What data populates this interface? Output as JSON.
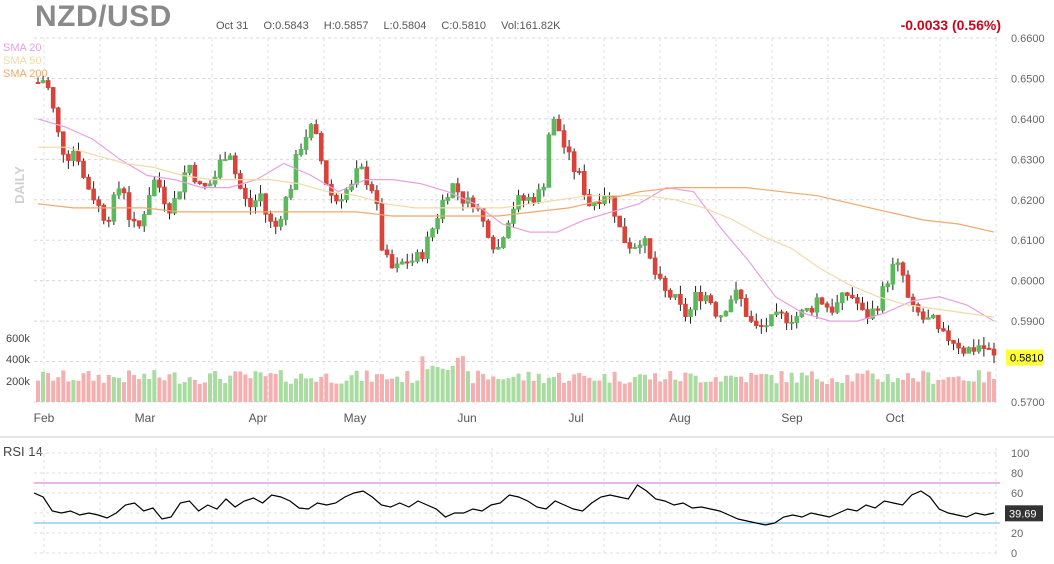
{
  "header": {
    "symbol": "NZD/USD",
    "date": "Oct 31",
    "open": "O:0.5843",
    "high": "H:0.5857",
    "low": "L:0.5804",
    "close": "C:0.5810",
    "volume": "Vol:161.82K",
    "change": "-0.0033 (0.56%)"
  },
  "legend": [
    {
      "label": "SMA 20",
      "color": "#e8a0e0"
    },
    {
      "label": "SMA 50",
      "color": "#f3d9a8"
    },
    {
      "label": "SMA 200",
      "color": "#f0a86a"
    }
  ],
  "panel_label": "DAILY",
  "colors": {
    "up": "#5cb85c",
    "down": "#d9433a",
    "vol_up": "#a8dca0",
    "vol_down": "#f4b0b0",
    "rsi_line": "#000000",
    "rsi_upper": "#d86ad8",
    "rsi_lower": "#5ab4e0"
  },
  "chart_data": [
    {
      "type": "candlestick",
      "title": "NZD/USD",
      "y_range": [
        0.57,
        0.66
      ],
      "y_ticks": [
        "0.6600",
        "0.6500",
        "0.6400",
        "0.6300",
        "0.6200",
        "0.6100",
        "0.6000",
        "0.5900",
        "0.5800",
        "0.5700"
      ],
      "x_ticks": [
        "Feb",
        "Mar",
        "Apr",
        "May",
        "Jun",
        "Jul",
        "Aug",
        "Sep",
        "Oct"
      ],
      "last_price_label": "0.5810",
      "close_path": [
        0.649,
        0.65,
        0.642,
        0.633,
        0.631,
        0.633,
        0.625,
        0.622,
        0.618,
        0.615,
        0.62,
        0.625,
        0.615,
        0.612,
        0.618,
        0.625,
        0.623,
        0.618,
        0.62,
        0.626,
        0.629,
        0.623,
        0.623,
        0.625,
        0.63,
        0.633,
        0.625,
        0.62,
        0.618,
        0.622,
        0.615,
        0.613,
        0.618,
        0.623,
        0.632,
        0.636,
        0.638,
        0.63,
        0.622,
        0.62,
        0.622,
        0.623,
        0.628,
        0.625,
        0.622,
        0.608,
        0.603,
        0.603,
        0.605,
        0.605,
        0.606,
        0.61,
        0.615,
        0.62,
        0.624,
        0.622,
        0.619,
        0.62,
        0.615,
        0.612,
        0.607,
        0.613,
        0.618,
        0.62,
        0.62,
        0.621,
        0.622,
        0.64,
        0.638,
        0.632,
        0.628,
        0.625,
        0.619,
        0.62,
        0.622,
        0.62,
        0.613,
        0.609,
        0.609,
        0.611,
        0.605,
        0.6,
        0.597,
        0.596,
        0.593,
        0.591,
        0.596,
        0.597,
        0.595,
        0.591,
        0.594,
        0.597,
        0.595,
        0.59,
        0.588,
        0.589,
        0.59,
        0.591,
        0.591,
        0.591,
        0.592,
        0.593,
        0.596,
        0.594,
        0.593,
        0.595,
        0.597,
        0.595,
        0.591,
        0.592,
        0.595,
        0.6,
        0.604,
        0.602,
        0.593,
        0.592,
        0.59,
        0.59,
        0.586,
        0.586,
        0.585,
        0.583,
        0.583,
        0.584,
        0.583,
        0.581
      ],
      "volume_axis_labels": [
        "600k",
        "400k",
        "200k"
      ],
      "series": [
        {
          "name": "SMA 20",
          "values": [
            0.64,
            0.638,
            0.635,
            0.63,
            0.626,
            0.625,
            0.623,
            0.623,
            0.625,
            0.629,
            0.626,
            0.622,
            0.625,
            0.625,
            0.624,
            0.622,
            0.619,
            0.614,
            0.612,
            0.612,
            0.615,
            0.617,
            0.619,
            0.623,
            0.622,
            0.613,
            0.605,
            0.596,
            0.592,
            0.59,
            0.59,
            0.592,
            0.595,
            0.596,
            0.594,
            0.59
          ]
        },
        {
          "name": "SMA 50",
          "values": [
            0.633,
            0.633,
            0.631,
            0.629,
            0.628,
            0.626,
            0.625,
            0.625,
            0.625,
            0.624,
            0.622,
            0.621,
            0.619,
            0.618,
            0.618,
            0.618,
            0.618,
            0.619,
            0.62,
            0.621,
            0.621,
            0.621,
            0.62,
            0.618,
            0.615,
            0.611,
            0.608,
            0.603,
            0.599,
            0.596,
            0.594,
            0.593,
            0.592,
            0.591
          ]
        },
        {
          "name": "SMA 200",
          "values": [
            0.619,
            0.618,
            0.618,
            0.618,
            0.617,
            0.617,
            0.617,
            0.617,
            0.617,
            0.617,
            0.616,
            0.616,
            0.616,
            0.616,
            0.617,
            0.618,
            0.62,
            0.622,
            0.623,
            0.623,
            0.623,
            0.622,
            0.621,
            0.619,
            0.617,
            0.615,
            0.614,
            0.612
          ]
        }
      ]
    },
    {
      "type": "line",
      "title": "RSI 14",
      "y_range": [
        0,
        100
      ],
      "y_ticks": [
        "100",
        "80",
        "60",
        "40",
        "20",
        "0"
      ],
      "reference_lines": [
        70,
        30
      ],
      "last_value_label": "39.69",
      "values": [
        60,
        56,
        42,
        40,
        42,
        38,
        40,
        38,
        35,
        40,
        48,
        50,
        42,
        45,
        34,
        36,
        50,
        52,
        42,
        48,
        44,
        54,
        46,
        52,
        55,
        50,
        58,
        56,
        52,
        45,
        44,
        50,
        48,
        50,
        56,
        60,
        62,
        56,
        48,
        46,
        50,
        46,
        52,
        48,
        44,
        36,
        40,
        40,
        44,
        42,
        48,
        50,
        58,
        56,
        52,
        46,
        44,
        52,
        48,
        44,
        42,
        50,
        56,
        58,
        56,
        54,
        68,
        62,
        54,
        52,
        48,
        50,
        45,
        46,
        44,
        42,
        38,
        34,
        32,
        30,
        28,
        30,
        36,
        38,
        36,
        40,
        38,
        36,
        40,
        44,
        42,
        48,
        45,
        52,
        50,
        48,
        58,
        62,
        56,
        44,
        40,
        38,
        36,
        40,
        38,
        40
      ]
    }
  ]
}
